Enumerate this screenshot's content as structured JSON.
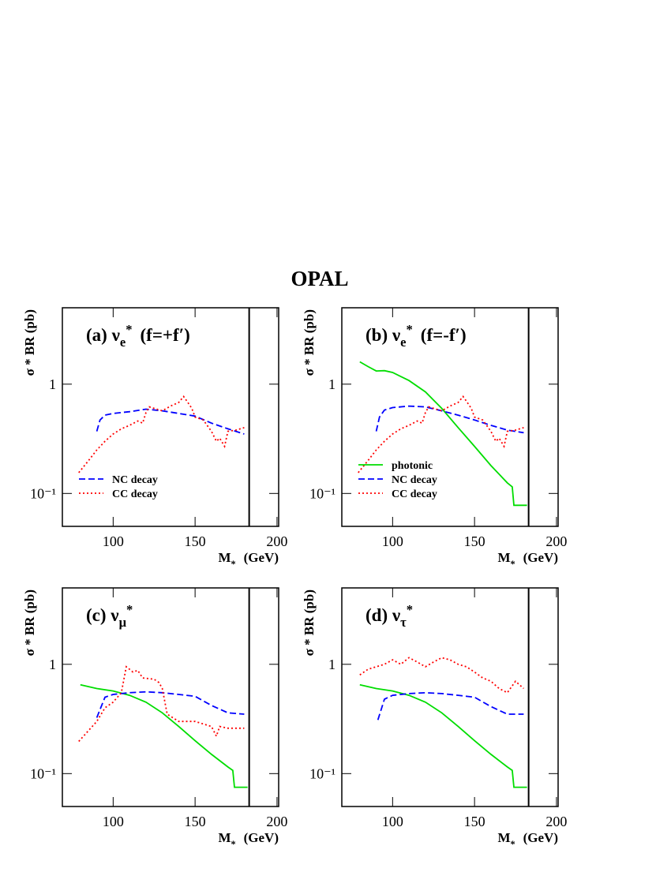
{
  "title": "OPAL",
  "chart_data": [
    {
      "type": "line",
      "title": {
        "text": "(a) ν",
        "sub": "e",
        "sup": "*",
        "suffix": "(f=+f′)"
      },
      "xlabel": {
        "text": "M",
        "sub": "*",
        "suffix": "(GeV)"
      },
      "ylabel": "σ * BR (pb)",
      "xlim": [
        69,
        201
      ],
      "ylim": [
        0.05,
        5
      ],
      "log_y": true,
      "xticks": [
        100,
        150,
        200
      ],
      "yticks": [
        {
          "value": 0.1,
          "label": "10⁻¹"
        },
        1
      ],
      "vline": 183,
      "legend": "lower left",
      "series": [
        {
          "name": "NC decay",
          "color": "#0000ff",
          "dash": "dashed",
          "x": [
            90,
            92,
            95,
            100,
            110,
            120,
            130,
            140,
            150,
            160,
            170,
            180
          ],
          "values": [
            0.37,
            0.47,
            0.52,
            0.54,
            0.56,
            0.59,
            0.57,
            0.54,
            0.51,
            0.44,
            0.39,
            0.35
          ]
        },
        {
          "name": "CC decay",
          "color": "#ff0000",
          "dash": "dotted",
          "x": [
            79,
            85,
            90,
            95,
            100,
            105,
            110,
            115,
            118,
            120,
            122,
            125,
            130,
            135,
            140,
            143,
            145,
            148,
            150,
            155,
            160,
            163,
            165,
            168,
            170,
            175,
            180
          ],
          "values": [
            0.155,
            0.2,
            0.25,
            0.3,
            0.35,
            0.39,
            0.42,
            0.46,
            0.44,
            0.55,
            0.62,
            0.6,
            0.57,
            0.63,
            0.68,
            0.77,
            0.7,
            0.6,
            0.5,
            0.47,
            0.37,
            0.3,
            0.32,
            0.27,
            0.37,
            0.38,
            0.4
          ]
        }
      ]
    },
    {
      "type": "line",
      "title": {
        "text": "(b) ν",
        "sub": "e",
        "sup": "*",
        "suffix": "(f=-f′)"
      },
      "xlabel": {
        "text": "M",
        "sub": "*",
        "suffix": "(GeV)"
      },
      "ylabel": "σ * BR (pb)",
      "xlim": [
        69,
        201
      ],
      "ylim": [
        0.05,
        5
      ],
      "log_y": true,
      "xticks": [
        100,
        150,
        200
      ],
      "yticks": [
        {
          "value": 0.1,
          "label": "10⁻¹"
        },
        1
      ],
      "vline": 183,
      "legend": "lower left",
      "series": [
        {
          "name": "photonic",
          "color": "#00dd00",
          "dash": "solid",
          "x": [
            80,
            85,
            90,
            95,
            100,
            110,
            120,
            130,
            140,
            150,
            160,
            170,
            173,
            174,
            182
          ],
          "values": [
            1.6,
            1.45,
            1.32,
            1.33,
            1.28,
            1.08,
            0.85,
            0.6,
            0.4,
            0.27,
            0.18,
            0.125,
            0.115,
            0.078,
            0.078
          ]
        },
        {
          "name": "NC decay",
          "color": "#0000ff",
          "dash": "dashed",
          "x": [
            90,
            92,
            95,
            100,
            110,
            120,
            130,
            140,
            150,
            160,
            170,
            180
          ],
          "values": [
            0.37,
            0.5,
            0.58,
            0.61,
            0.63,
            0.62,
            0.57,
            0.52,
            0.47,
            0.42,
            0.38,
            0.36
          ]
        },
        {
          "name": "CC decay",
          "color": "#ff0000",
          "dash": "dotted",
          "x": [
            79,
            85,
            90,
            95,
            100,
            105,
            110,
            115,
            118,
            120,
            122,
            125,
            130,
            135,
            140,
            143,
            145,
            148,
            150,
            155,
            160,
            163,
            165,
            168,
            170,
            175,
            180
          ],
          "values": [
            0.155,
            0.2,
            0.25,
            0.3,
            0.35,
            0.39,
            0.42,
            0.46,
            0.44,
            0.55,
            0.62,
            0.6,
            0.57,
            0.63,
            0.68,
            0.77,
            0.7,
            0.6,
            0.5,
            0.47,
            0.37,
            0.3,
            0.32,
            0.27,
            0.37,
            0.38,
            0.4
          ]
        }
      ]
    },
    {
      "type": "line",
      "title": {
        "text": "(c) ν",
        "sub": "μ",
        "sup": "*"
      },
      "xlabel": {
        "text": "M",
        "sub": "*",
        "suffix": "(GeV)"
      },
      "ylabel": "σ * BR (pb)",
      "xlim": [
        69,
        201
      ],
      "ylim": [
        0.05,
        5
      ],
      "log_y": true,
      "xticks": [
        100,
        150,
        200
      ],
      "yticks": [
        {
          "value": 0.1,
          "label": "10⁻¹"
        },
        1
      ],
      "vline": 183,
      "series": [
        {
          "color": "#00dd00",
          "dash": "solid",
          "x": [
            80,
            90,
            100,
            110,
            120,
            130,
            140,
            150,
            160,
            170,
            173,
            174,
            182
          ],
          "values": [
            0.65,
            0.6,
            0.57,
            0.52,
            0.45,
            0.36,
            0.27,
            0.2,
            0.15,
            0.115,
            0.107,
            0.075,
            0.075
          ]
        },
        {
          "color": "#0000ff",
          "dash": "dashed",
          "x": [
            90,
            95,
            100,
            110,
            120,
            130,
            140,
            150,
            160,
            170,
            180
          ],
          "values": [
            0.325,
            0.5,
            0.53,
            0.55,
            0.56,
            0.55,
            0.53,
            0.51,
            0.42,
            0.36,
            0.35
          ]
        },
        {
          "color": "#ff0000",
          "dash": "dotted",
          "x": [
            79,
            90,
            95,
            100,
            105,
            108,
            110,
            112,
            115,
            118,
            125,
            128,
            130,
            133,
            140,
            150,
            160,
            163,
            165,
            170,
            180
          ],
          "values": [
            0.197,
            0.3,
            0.4,
            0.45,
            0.55,
            0.95,
            0.9,
            0.85,
            0.88,
            0.75,
            0.73,
            0.68,
            0.6,
            0.35,
            0.3,
            0.3,
            0.27,
            0.22,
            0.27,
            0.26,
            0.26
          ]
        }
      ]
    },
    {
      "type": "line",
      "title": {
        "text": "(d) ν",
        "sub": "τ",
        "sup": "*"
      },
      "xlabel": {
        "text": "M",
        "sub": "*",
        "suffix": "(GeV)"
      },
      "ylabel": "σ * BR (pb)",
      "xlim": [
        69,
        201
      ],
      "ylim": [
        0.05,
        5
      ],
      "log_y": true,
      "xticks": [
        100,
        150,
        200
      ],
      "yticks": [
        {
          "value": 0.1,
          "label": "10⁻¹"
        },
        1
      ],
      "vline": 183,
      "series": [
        {
          "color": "#00dd00",
          "dash": "solid",
          "x": [
            80,
            90,
            100,
            110,
            120,
            130,
            140,
            150,
            160,
            170,
            173,
            174,
            182
          ],
          "values": [
            0.65,
            0.6,
            0.57,
            0.52,
            0.45,
            0.36,
            0.27,
            0.2,
            0.15,
            0.115,
            0.107,
            0.075,
            0.075
          ]
        },
        {
          "color": "#0000ff",
          "dash": "dashed",
          "x": [
            91,
            95,
            100,
            110,
            120,
            130,
            140,
            150,
            160,
            170,
            180
          ],
          "values": [
            0.31,
            0.48,
            0.52,
            0.54,
            0.55,
            0.54,
            0.52,
            0.5,
            0.41,
            0.35,
            0.35
          ]
        },
        {
          "color": "#ff0000",
          "dash": "dotted",
          "x": [
            80,
            85,
            90,
            95,
            100,
            105,
            110,
            115,
            120,
            125,
            130,
            135,
            140,
            145,
            150,
            155,
            160,
            165,
            170,
            175,
            180
          ],
          "values": [
            0.8,
            0.9,
            0.95,
            1.0,
            1.1,
            1.0,
            1.15,
            1.05,
            0.95,
            1.05,
            1.15,
            1.1,
            1.0,
            0.95,
            0.85,
            0.75,
            0.7,
            0.6,
            0.55,
            0.7,
            0.6
          ]
        }
      ]
    }
  ]
}
